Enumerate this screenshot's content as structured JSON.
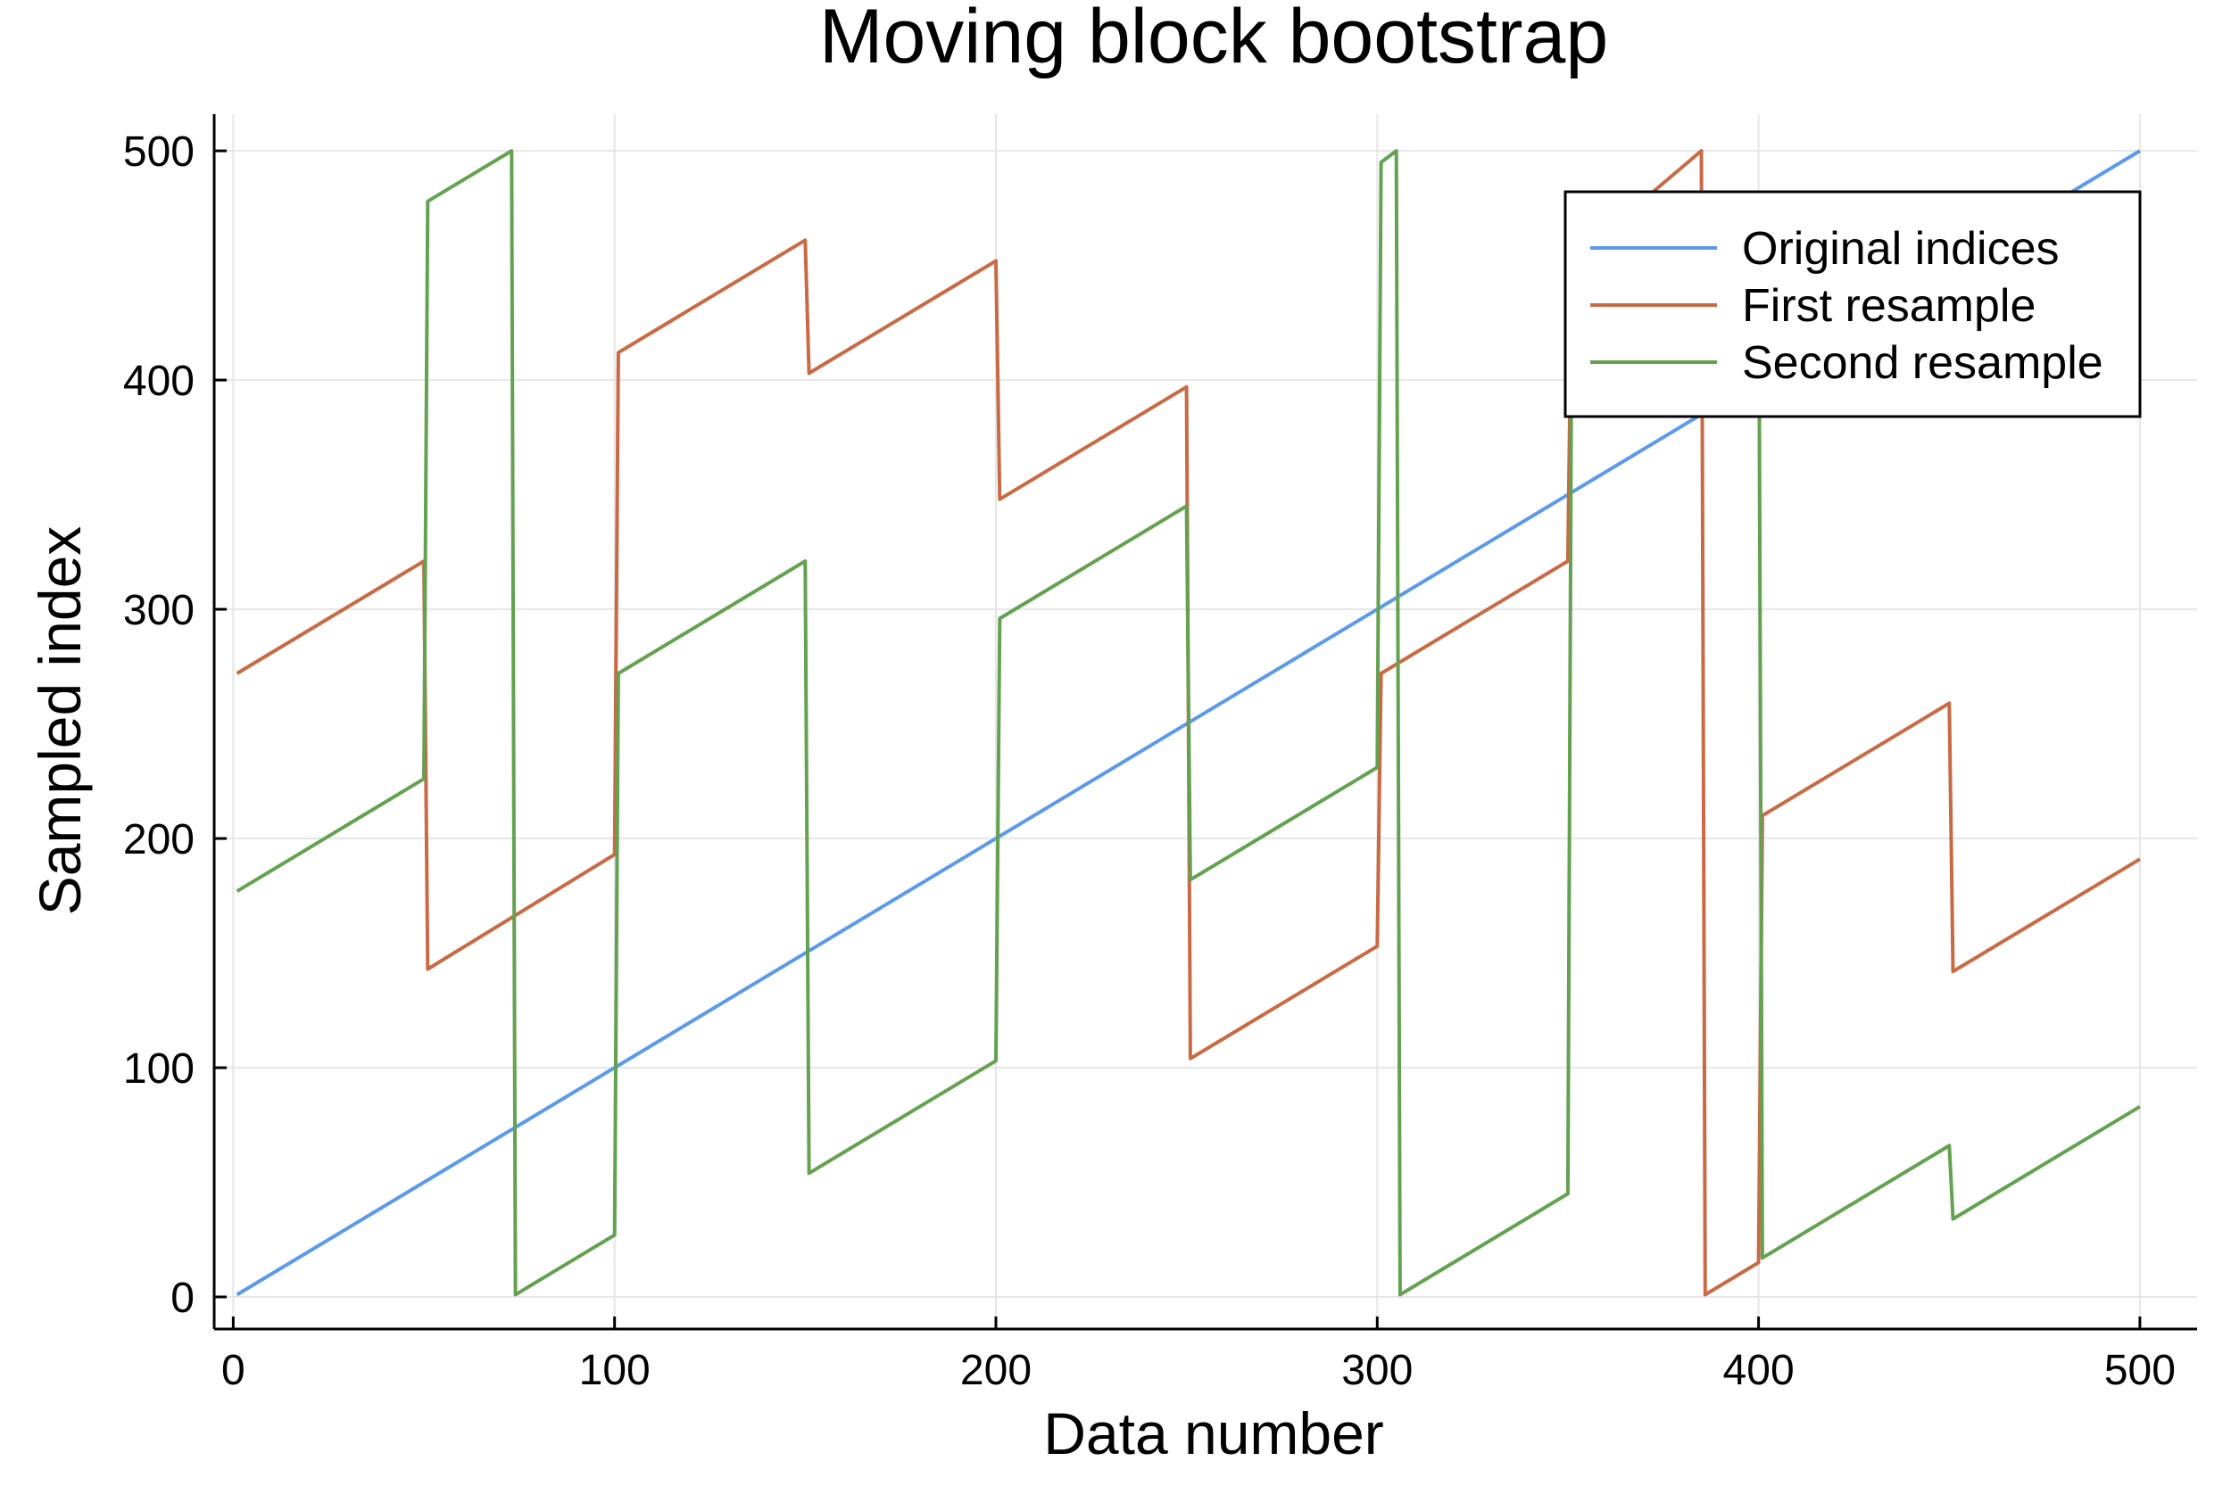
{
  "chart_data": {
    "type": "line",
    "title": "Moving block bootstrap",
    "xlabel": "Data number",
    "ylabel": "Sampled index",
    "xlim": [
      -5,
      515
    ],
    "ylim": [
      -14,
      516
    ],
    "xticks": [
      0,
      100,
      200,
      300,
      400,
      500
    ],
    "yticks": [
      0,
      100,
      200,
      300,
      400,
      500
    ],
    "xtick_labels": [
      "0",
      "100",
      "200",
      "300",
      "400",
      "500"
    ],
    "ytick_labels": [
      "0",
      "100",
      "200",
      "300",
      "400",
      "500"
    ],
    "grid": true,
    "legend_position": "top-right",
    "series": [
      {
        "name": "Original indices",
        "color": "#5b9ae8",
        "points": [
          [
            1,
            1
          ],
          [
            500,
            500
          ]
        ]
      },
      {
        "name": "First resample",
        "color": "#c86a44",
        "points": [
          [
            1,
            272
          ],
          [
            50,
            321
          ],
          [
            51,
            143
          ],
          [
            100,
            193
          ],
          [
            101,
            412
          ],
          [
            150,
            461
          ],
          [
            151,
            403
          ],
          [
            200,
            452
          ],
          [
            201,
            348
          ],
          [
            250,
            397
          ],
          [
            251,
            104
          ],
          [
            300,
            153
          ],
          [
            301,
            272
          ],
          [
            350,
            321
          ],
          [
            351,
            452
          ],
          [
            385,
            500
          ],
          [
            386,
            1
          ],
          [
            400,
            15
          ],
          [
            401,
            210
          ],
          [
            450,
            259
          ],
          [
            451,
            142
          ],
          [
            500,
            191
          ]
        ]
      },
      {
        "name": "Second resample",
        "color": "#64a150",
        "points": [
          [
            1,
            177
          ],
          [
            50,
            226
          ],
          [
            51,
            478
          ],
          [
            73,
            500
          ],
          [
            74,
            1
          ],
          [
            100,
            27
          ],
          [
            101,
            272
          ],
          [
            150,
            321
          ],
          [
            151,
            54
          ],
          [
            200,
            103
          ],
          [
            201,
            296
          ],
          [
            250,
            345
          ],
          [
            251,
            182
          ],
          [
            300,
            231
          ],
          [
            301,
            495
          ],
          [
            305,
            500
          ],
          [
            306,
            1
          ],
          [
            350,
            45
          ],
          [
            351,
            432
          ],
          [
            400,
            481
          ],
          [
            401,
            17
          ],
          [
            450,
            66
          ],
          [
            451,
            34
          ],
          [
            500,
            83
          ]
        ]
      }
    ]
  }
}
